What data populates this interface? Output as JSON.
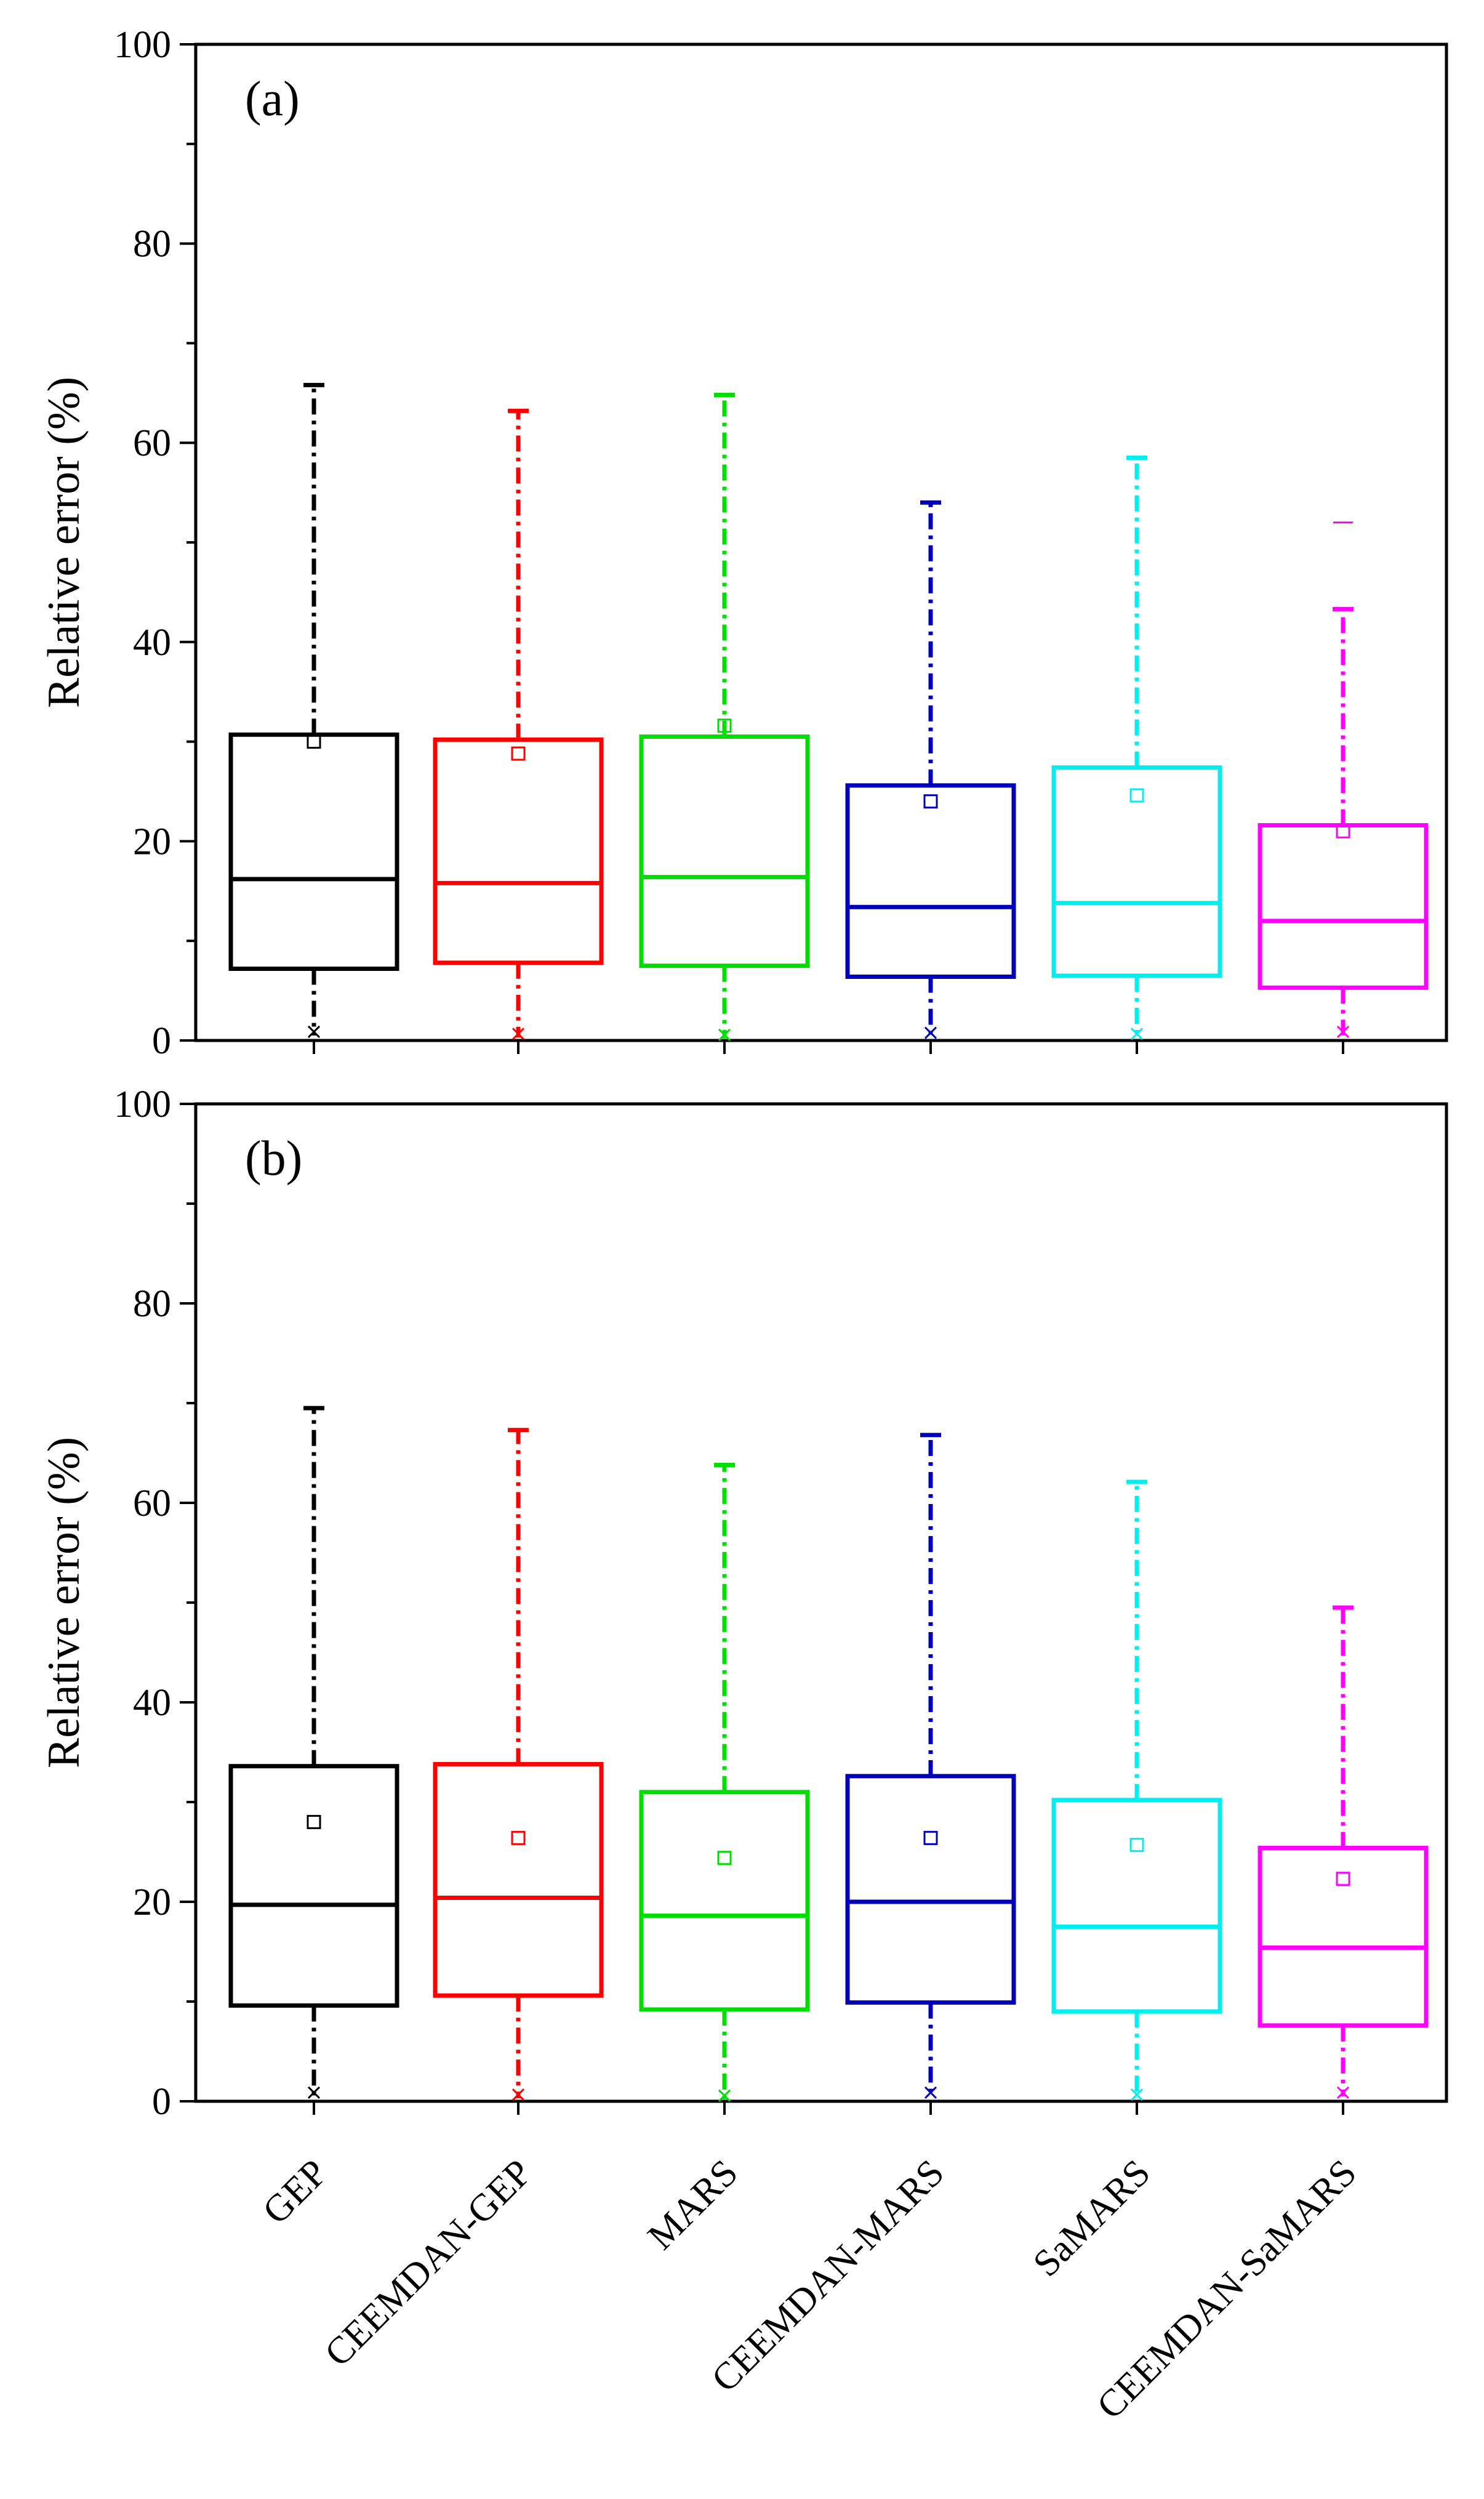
{
  "chart_data": [
    {
      "type": "box",
      "panel_label": "(a)",
      "ylabel": "Relative error (%)",
      "ylim": [
        0,
        100
      ],
      "yticks": [
        0,
        20,
        40,
        60,
        80,
        100
      ],
      "categories": [
        "GEP",
        "CEEMDAN-GEP",
        "MARS",
        "CEEMDAN-MARS",
        "SaMARS",
        "CEEMDAN-SaMARS"
      ],
      "colors": [
        "#000000",
        "#ff0000",
        "#00dd00",
        "#0000bb",
        "#00eeee",
        "#ff00ff"
      ],
      "boxes": [
        {
          "min": 0.5,
          "q1": 7.2,
          "median": 16.2,
          "q3": 30.7,
          "max": 65.8,
          "mean": 30.0
        },
        {
          "min": 0.3,
          "q1": 7.8,
          "median": 15.8,
          "q3": 30.2,
          "max": 63.2,
          "mean": 28.8
        },
        {
          "min": 0.2,
          "q1": 7.5,
          "median": 16.4,
          "q3": 30.5,
          "max": 64.8,
          "mean": 31.6
        },
        {
          "min": 0.4,
          "q1": 6.4,
          "median": 13.4,
          "q3": 25.6,
          "max": 54.0,
          "mean": 24.0
        },
        {
          "min": 0.3,
          "q1": 6.5,
          "median": 13.8,
          "q3": 27.4,
          "max": 58.5,
          "mean": 24.6
        },
        {
          "min": 0.5,
          "q1": 5.3,
          "median": 12.0,
          "q3": 21.6,
          "max": 43.3,
          "mean": 21.0,
          "outliers": [
            52.0
          ]
        }
      ]
    },
    {
      "type": "box",
      "panel_label": "(b)",
      "ylabel": "Relative error (%)",
      "ylim": [
        0,
        100
      ],
      "yticks": [
        0,
        20,
        40,
        60,
        80,
        100
      ],
      "categories": [
        "GEP",
        "CEEMDAN-GEP",
        "MARS",
        "CEEMDAN-MARS",
        "SaMARS",
        "CEEMDAN-SaMARS"
      ],
      "colors": [
        "#000000",
        "#ff0000",
        "#00dd00",
        "#0000bb",
        "#00eeee",
        "#ff00ff"
      ],
      "boxes": [
        {
          "min": 0.5,
          "q1": 9.6,
          "median": 19.7,
          "q3": 33.6,
          "max": 69.5,
          "mean": 28.0
        },
        {
          "min": 0.3,
          "q1": 10.6,
          "median": 20.4,
          "q3": 33.8,
          "max": 67.3,
          "mean": 26.4
        },
        {
          "min": 0.2,
          "q1": 9.2,
          "median": 18.6,
          "q3": 31.0,
          "max": 63.8,
          "mean": 24.4
        },
        {
          "min": 0.5,
          "q1": 9.9,
          "median": 20.0,
          "q3": 32.6,
          "max": 66.8,
          "mean": 26.4
        },
        {
          "min": 0.3,
          "q1": 9.0,
          "median": 17.5,
          "q3": 30.2,
          "max": 62.1,
          "mean": 25.7
        },
        {
          "min": 0.5,
          "q1": 7.6,
          "median": 15.4,
          "q3": 25.4,
          "max": 49.5,
          "mean": 22.3
        }
      ]
    }
  ]
}
